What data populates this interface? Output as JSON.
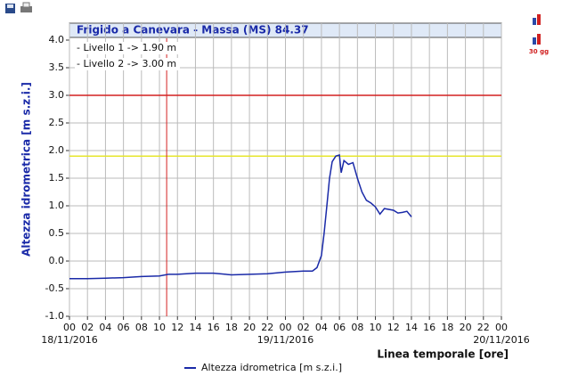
{
  "chart_data": {
    "type": "line",
    "title": "Frigido a Canevara - Massa (MS) 84.37",
    "y_label": "Altezza idrometrica [m s.z.i.]",
    "x_label": "Linea temporale [ore]",
    "toolbar_badge": "30 gg",
    "annotations": [
      "- Livello 1 -> 1.90 m",
      "- Livello 2 -> 3.00 m"
    ],
    "thresholds": [
      {
        "value": 1.9,
        "color": "#e6e62e"
      },
      {
        "value": 3.0,
        "color": "#d42020"
      }
    ],
    "marker_x": {
      "value": 10.8,
      "color": "#d42020"
    },
    "series": [
      {
        "name": "Altezza idrometrica [m s.z.i.]",
        "color": "#1a2aa8",
        "x": [
          0,
          2,
          4,
          6,
          8,
          10,
          11,
          12,
          14,
          16,
          18,
          20,
          22,
          24,
          26,
          27,
          27.5,
          28,
          28.3,
          28.6,
          28.9,
          29.2,
          29.6,
          30,
          30.2,
          30.5,
          31,
          31.5,
          32,
          32.5,
          33,
          33.5,
          34,
          34.5,
          35,
          36,
          36.5,
          37,
          37.5,
          38
        ],
        "values": [
          -0.32,
          -0.32,
          -0.31,
          -0.3,
          -0.28,
          -0.27,
          -0.24,
          -0.24,
          -0.22,
          -0.22,
          -0.25,
          -0.24,
          -0.23,
          -0.2,
          -0.18,
          -0.18,
          -0.12,
          0.1,
          0.5,
          1.0,
          1.5,
          1.8,
          1.9,
          1.92,
          1.6,
          1.82,
          1.75,
          1.78,
          1.5,
          1.25,
          1.1,
          1.05,
          0.98,
          0.85,
          0.95,
          0.92,
          0.87,
          0.88,
          0.9,
          0.8
        ]
      }
    ],
    "xlim": [
      0,
      48
    ],
    "xticks": [
      {
        "value": 0,
        "label": "00"
      },
      {
        "value": 2,
        "label": "02"
      },
      {
        "value": 4,
        "label": "04"
      },
      {
        "value": 6,
        "label": "06"
      },
      {
        "value": 8,
        "label": "08"
      },
      10,
      12,
      14,
      16,
      18,
      20,
      22,
      {
        "value": 24,
        "label": "00"
      },
      {
        "value": 26,
        "label": "02"
      },
      {
        "value": 28,
        "label": "04"
      },
      {
        "value": 30,
        "label": "06"
      },
      {
        "value": 32,
        "label": "08"
      },
      {
        "value": 34,
        "label": "10"
      },
      {
        "value": 36,
        "label": "12"
      },
      {
        "value": 38,
        "label": "14"
      },
      {
        "value": 40,
        "label": "16"
      },
      {
        "value": 42,
        "label": "18"
      },
      {
        "value": 44,
        "label": "20"
      },
      {
        "value": 46,
        "label": "22"
      },
      {
        "value": 48,
        "label": "00"
      }
    ],
    "date_labels": [
      {
        "value": 0,
        "label": "18/11/2016"
      },
      {
        "value": 24,
        "label": "19/11/2016"
      },
      {
        "value": 48,
        "label": "20/11/2016"
      }
    ],
    "ylim": [
      -1,
      4
    ],
    "yticks": [
      {
        "value": -1,
        "label": "-1.0"
      },
      -0.5,
      {
        "value": 0,
        "label": "0.0"
      },
      0.5,
      {
        "value": 1,
        "label": "1.0"
      },
      1.5,
      {
        "value": 2,
        "label": "2.0"
      },
      2.5,
      {
        "value": 3,
        "label": "3.0"
      },
      3.5,
      {
        "value": 4,
        "label": "4.0"
      }
    ],
    "grid": true
  }
}
